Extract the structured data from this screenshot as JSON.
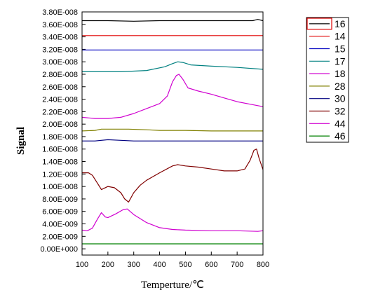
{
  "chart_data": {
    "type": "line",
    "xlabel": "Temperture/℃",
    "ylabel": "Signal",
    "xlim": [
      100,
      800
    ],
    "ylim": [
      -1e-09,
      3.8e-08
    ],
    "x_ticks": [
      100,
      200,
      300,
      400,
      500,
      600,
      700,
      800
    ],
    "x_tick_labels": [
      "100",
      "200",
      "300",
      "400",
      "500",
      "600",
      "700",
      "800"
    ],
    "y_ticks": [
      0,
      2e-09,
      4e-09,
      6e-09,
      8e-09,
      1e-08,
      1.2e-08,
      1.4e-08,
      1.6e-08,
      1.8e-08,
      2e-08,
      2.2e-08,
      2.4e-08,
      2.6e-08,
      2.8e-08,
      3e-08,
      3.2e-08,
      3.4e-08,
      3.6e-08,
      3.8e-08
    ],
    "y_tick_labels": [
      "0.00E+000",
      "2.00E-009",
      "4.00E-009",
      "6.00E-009",
      "8.00E-009",
      "1.00E-008",
      "1.20E-008",
      "1.40E-008",
      "1.60E-008",
      "1.80E-008",
      "2.00E-008",
      "2.20E-008",
      "2.40E-008",
      "2.60E-008",
      "2.80E-008",
      "3.00E-008",
      "3.20E-008",
      "3.40E-008",
      "3.60E-008",
      "3.80E-008"
    ],
    "legend_position": "right",
    "series": [
      {
        "name": "16",
        "color": "#000000",
        "x": [
          100,
          200,
          300,
          400,
          500,
          600,
          700,
          760,
          780,
          800
        ],
        "y": [
          3.66e-08,
          3.66e-08,
          3.65e-08,
          3.66e-08,
          3.66e-08,
          3.66e-08,
          3.66e-08,
          3.66e-08,
          3.68e-08,
          3.66e-08
        ]
      },
      {
        "name": "14",
        "color": "#e00000",
        "x": [
          100,
          800
        ],
        "y": [
          3.42e-08,
          3.42e-08
        ]
      },
      {
        "name": "15",
        "color": "#0000c0",
        "x": [
          100,
          800
        ],
        "y": [
          3.19e-08,
          3.19e-08
        ]
      },
      {
        "name": "17",
        "color": "#008080",
        "x": [
          100,
          250,
          350,
          420,
          450,
          470,
          490,
          520,
          600,
          700,
          800
        ],
        "y": [
          2.84e-08,
          2.84e-08,
          2.86e-08,
          2.92e-08,
          2.97e-08,
          3e-08,
          2.99e-08,
          2.95e-08,
          2.93e-08,
          2.91e-08,
          2.88e-08
        ]
      },
      {
        "name": "18",
        "color": "#d000d0",
        "x": [
          100,
          150,
          200,
          250,
          300,
          350,
          400,
          430,
          450,
          465,
          475,
          490,
          510,
          550,
          600,
          650,
          700,
          750,
          800
        ],
        "y": [
          2.11e-08,
          2.09e-08,
          2.09e-08,
          2.11e-08,
          2.17e-08,
          2.25e-08,
          2.33e-08,
          2.45e-08,
          2.68e-08,
          2.78e-08,
          2.8e-08,
          2.72e-08,
          2.58e-08,
          2.53e-08,
          2.48e-08,
          2.42e-08,
          2.36e-08,
          2.32e-08,
          2.28e-08
        ]
      },
      {
        "name": "28",
        "color": "#808000",
        "x": [
          100,
          150,
          175,
          200,
          250,
          280,
          350,
          400,
          500,
          600,
          700,
          800
        ],
        "y": [
          1.89e-08,
          1.9e-08,
          1.92e-08,
          1.92e-08,
          1.92e-08,
          1.92e-08,
          1.91e-08,
          1.9e-08,
          1.9e-08,
          1.89e-08,
          1.89e-08,
          1.89e-08
        ]
      },
      {
        "name": "30",
        "color": "#000080",
        "x": [
          100,
          150,
          200,
          250,
          300,
          400,
          500,
          600,
          700,
          800
        ],
        "y": [
          1.73e-08,
          1.73e-08,
          1.75e-08,
          1.74e-08,
          1.73e-08,
          1.73e-08,
          1.73e-08,
          1.73e-08,
          1.73e-08,
          1.73e-08
        ]
      },
      {
        "name": "32",
        "color": "#800000",
        "x": [
          100,
          125,
          140,
          160,
          175,
          200,
          225,
          250,
          265,
          280,
          300,
          325,
          350,
          400,
          450,
          470,
          500,
          550,
          600,
          650,
          700,
          730,
          750,
          765,
          775,
          785,
          800
        ],
        "y": [
          1.22e-08,
          1.22e-08,
          1.18e-08,
          1.05e-08,
          9.5e-09,
          1e-08,
          9.8e-09,
          9e-09,
          8e-09,
          7.5e-09,
          9e-09,
          1.02e-08,
          1.1e-08,
          1.22e-08,
          1.33e-08,
          1.35e-08,
          1.33e-08,
          1.31e-08,
          1.28e-08,
          1.25e-08,
          1.25e-08,
          1.28e-08,
          1.42e-08,
          1.58e-08,
          1.6e-08,
          1.45e-08,
          1.27e-08
        ]
      },
      {
        "name": "44",
        "color": "#d000d0",
        "x": [
          100,
          120,
          140,
          160,
          175,
          190,
          200,
          230,
          260,
          275,
          300,
          350,
          400,
          450,
          500,
          600,
          700,
          780,
          800
        ],
        "y": [
          3e-09,
          2.9e-09,
          3.3e-09,
          4.8e-09,
          5.8e-09,
          5.1e-09,
          5e-09,
          5.6e-09,
          6.3e-09,
          6.4e-09,
          5.5e-09,
          4.2e-09,
          3.4e-09,
          3.1e-09,
          3e-09,
          2.9e-09,
          2.9e-09,
          2.8e-09,
          2.9e-09
        ]
      },
      {
        "name": "46",
        "color": "#008000",
        "x": [
          100,
          800
        ],
        "y": [
          8e-10,
          8e-10
        ]
      }
    ]
  }
}
